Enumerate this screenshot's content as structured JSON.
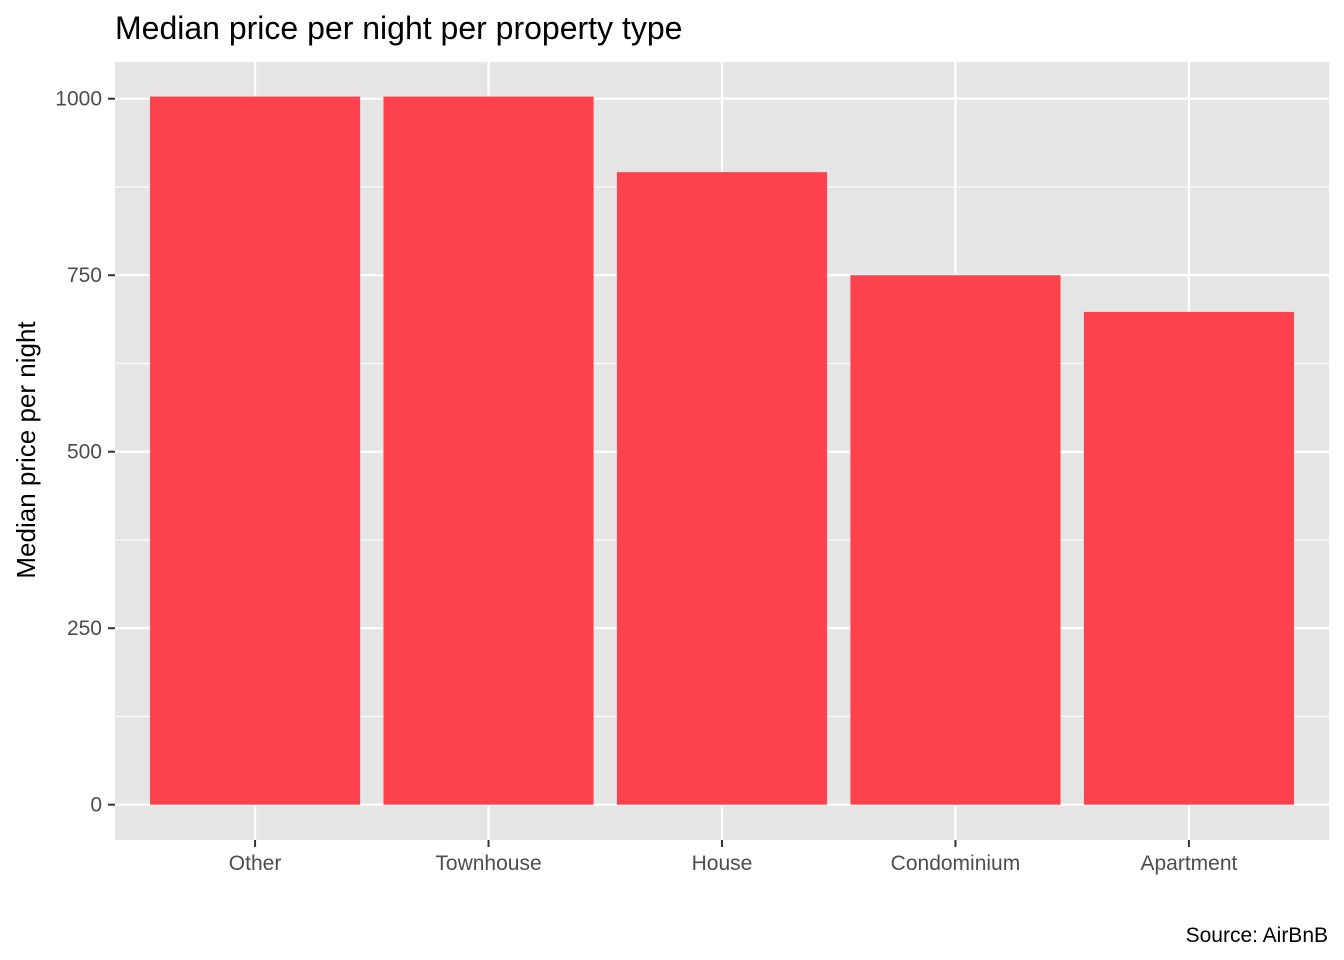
{
  "chart_data": {
    "type": "bar",
    "title": "Median price per night per property type",
    "xlabel": "",
    "ylabel": "Median price per night",
    "categories": [
      "Other",
      "Townhouse",
      "House",
      "Condominium",
      "Apartment"
    ],
    "values": [
      1003,
      1003,
      896,
      750,
      698
    ],
    "ylim": [
      -50,
      1052
    ],
    "yticks": [
      0,
      250,
      500,
      750,
      1000
    ],
    "ytick_labels": [
      "0",
      "250",
      "500",
      "750",
      "1000"
    ],
    "grid": true,
    "legend": "none",
    "caption": "Source: AirBnB",
    "colors": {
      "bar": "#fe424d",
      "panel": "#e5e5e5",
      "grid": "#ffffff",
      "tick_text": "#4d4d4d"
    }
  }
}
